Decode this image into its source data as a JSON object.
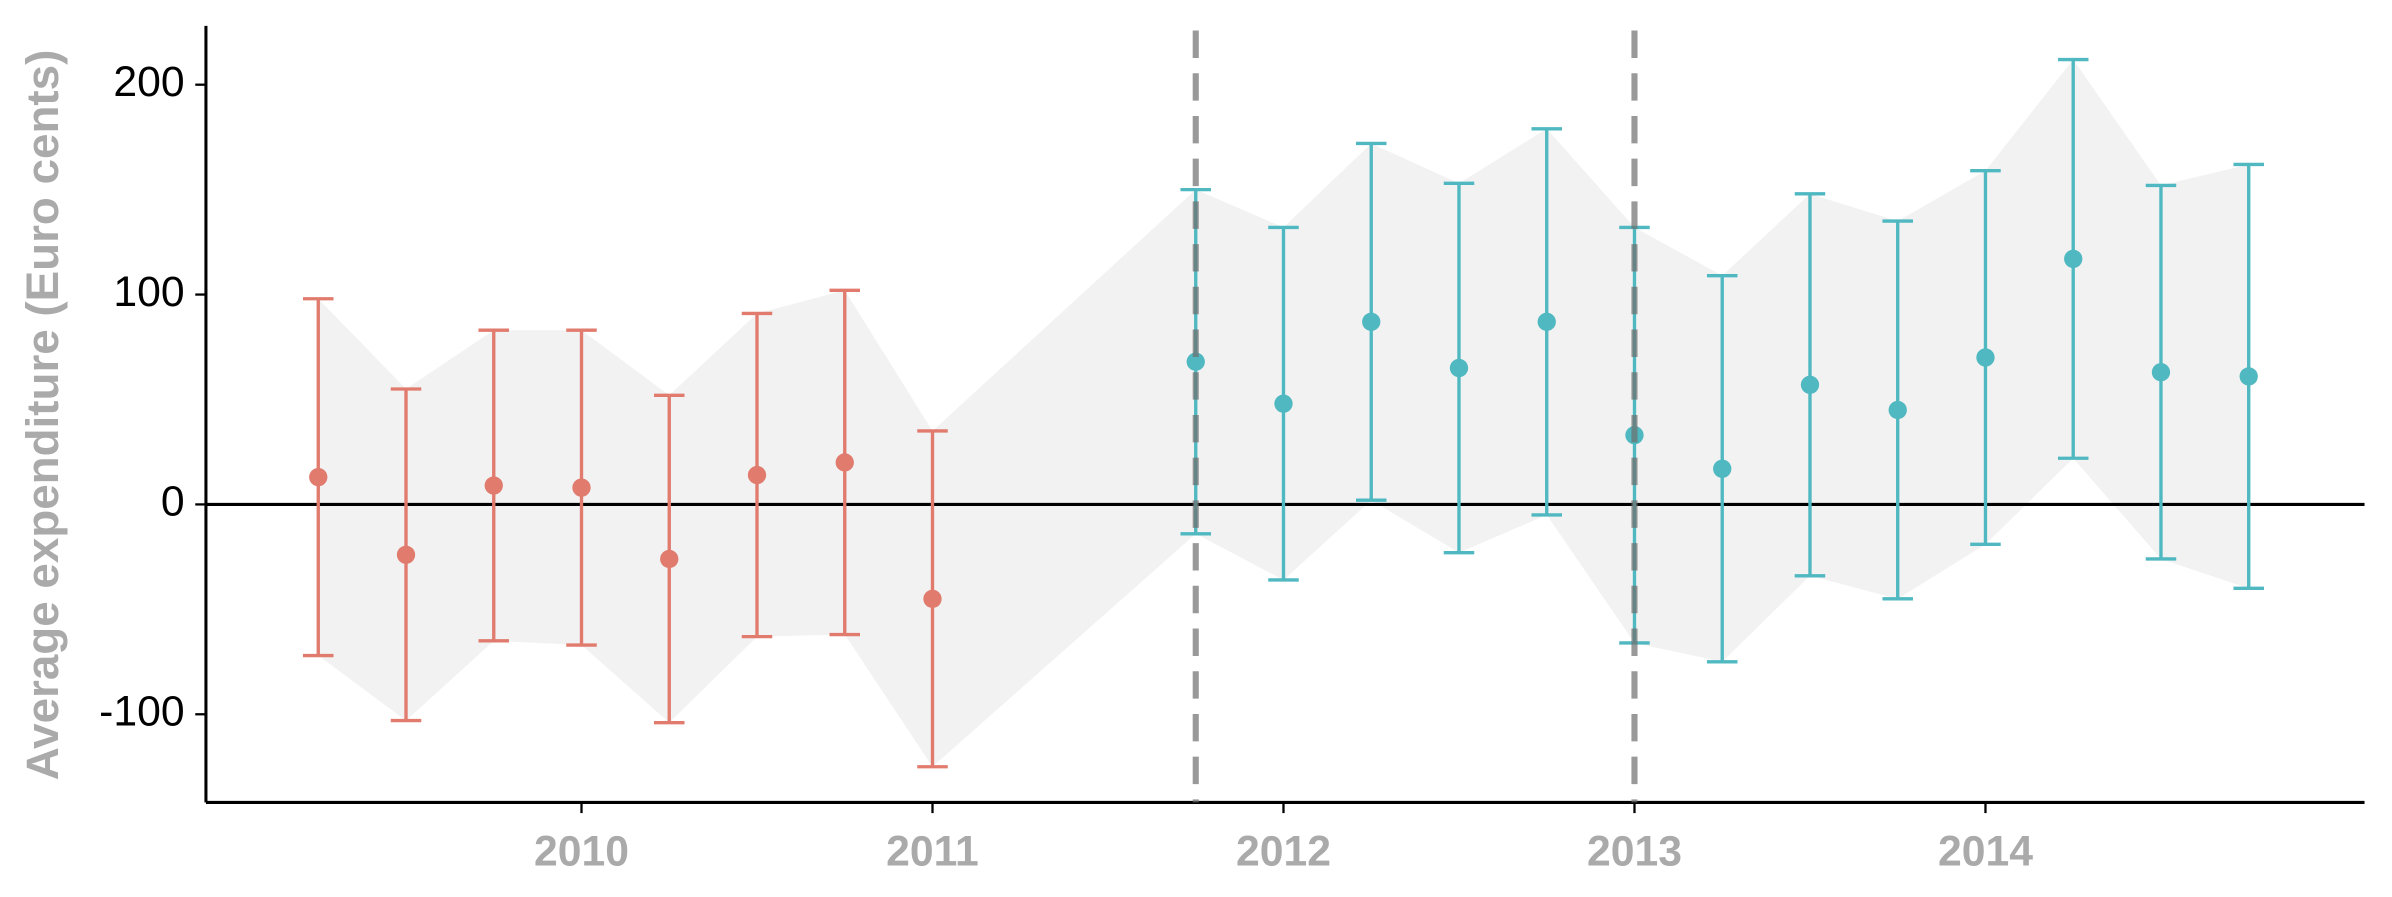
{
  "chart_data": {
    "type": "errorbar",
    "y_label": "Average expenditure (Euro cents)",
    "xlim": [
      2008.93,
      2015.08
    ],
    "xticks": [
      2010,
      2011,
      2012,
      2013,
      2014
    ],
    "ylim": [
      -142,
      228
    ],
    "yticks": [
      -100,
      0,
      100,
      200
    ],
    "hline": 0,
    "vlines": [
      2011.75,
      2013
    ],
    "grid": false,
    "ribbon_color": "#f2f2f2",
    "series": [
      {
        "color": "#e07b6e",
        "x": [
          2009.25,
          2009.5,
          2009.75,
          2010,
          2010.25,
          2010.5,
          2010.75,
          2011
        ],
        "values": [
          13,
          -24,
          9,
          8,
          -26,
          14,
          20,
          -45
        ],
        "errors": [
          85,
          79,
          74,
          75,
          78,
          77,
          82,
          80
        ]
      },
      {
        "color": "#4fb8c0",
        "x": [
          2011.75,
          2012,
          2012.25,
          2012.5,
          2012.75,
          2013,
          2013.25,
          2013.5,
          2013.75,
          2014,
          2014.25,
          2014.5,
          2014.75
        ],
        "values": [
          68,
          48,
          87,
          65,
          87,
          33,
          17,
          57,
          45,
          70,
          117,
          63,
          61
        ],
        "errors": [
          82,
          84,
          85,
          88,
          92,
          99,
          92,
          91,
          90,
          89,
          95,
          89,
          101
        ]
      }
    ]
  }
}
